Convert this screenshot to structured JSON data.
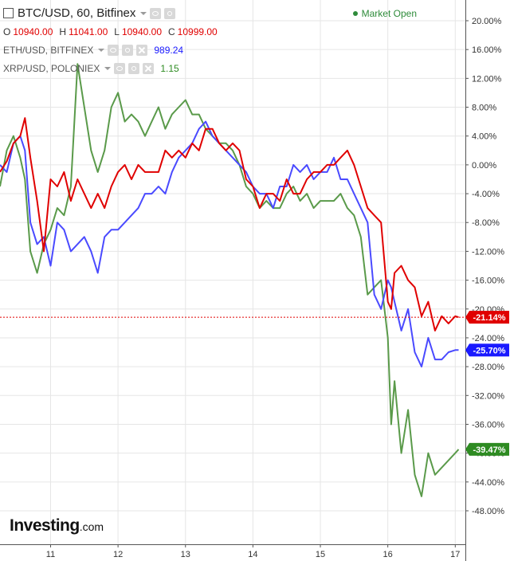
{
  "header": {
    "symbol_title": "BTC/USD, 60, Bitfinex",
    "ohlc": [
      {
        "k": "O",
        "v": "10940.00"
      },
      {
        "k": "H",
        "v": "11041.00"
      },
      {
        "k": "L",
        "v": "10940.00"
      },
      {
        "k": "C",
        "v": "10999.00"
      }
    ],
    "status": "Market Open",
    "overlays": [
      {
        "name": "ETH/USD, BITFINEX",
        "value": "989.24",
        "color": "#1a1aff"
      },
      {
        "name": "XRP/USD, POLONIEX",
        "value": "1.15",
        "color": "#2e8b22"
      }
    ]
  },
  "logo": {
    "main": "Investing",
    "sub": ".com"
  },
  "colors": {
    "btc": "#e00000",
    "eth": "#4a4aff",
    "xrp": "#5a9a4a",
    "grid": "#e6e6e6",
    "baseline": "#e00000"
  },
  "chart_data": {
    "type": "line",
    "ylim": [
      -48,
      22
    ],
    "y_ticks": [
      "20.00%",
      "16.00%",
      "12.00%",
      "8.00%",
      "4.00%",
      "0.00%",
      "-4.00%",
      "-8.00%",
      "-12.00%",
      "-16.00%",
      "-20.00%",
      "-24.00%",
      "-28.00%",
      "-32.00%",
      "-36.00%",
      "-40.00%",
      "-44.00%",
      "-48.00%"
    ],
    "y_tick_values": [
      20,
      16,
      12,
      8,
      4,
      0,
      -4,
      -8,
      -12,
      -16,
      -20,
      -24,
      -28,
      -32,
      -36,
      -40,
      -44,
      -48
    ],
    "x_ticks": [
      "11",
      "12",
      "13",
      "14",
      "15",
      "16",
      "17"
    ],
    "x_tick_values": [
      11,
      12,
      13,
      14,
      15,
      16,
      17
    ],
    "xlim": [
      10.25,
      17.15
    ],
    "end_labels": [
      {
        "series": "BTC/USD",
        "text": "-21.14%",
        "value": -21.14,
        "color": "#e00000"
      },
      {
        "series": "ETH/USD",
        "text": "-25.70%",
        "value": -25.7,
        "color": "#1a1aff"
      },
      {
        "series": "XRP/USD",
        "text": "-39.47%",
        "value": -39.47,
        "color": "#2e8b22"
      }
    ],
    "series": [
      {
        "name": "BTC/USD",
        "color": "#e00000",
        "x": [
          10.25,
          10.35,
          10.45,
          10.55,
          10.62,
          10.7,
          10.8,
          10.9,
          11.0,
          11.1,
          11.2,
          11.3,
          11.4,
          11.5,
          11.6,
          11.7,
          11.8,
          11.9,
          12.0,
          12.1,
          12.2,
          12.3,
          12.4,
          12.5,
          12.6,
          12.7,
          12.8,
          12.9,
          13.0,
          13.1,
          13.2,
          13.3,
          13.4,
          13.5,
          13.6,
          13.7,
          13.8,
          13.9,
          14.0,
          14.1,
          14.2,
          14.3,
          14.4,
          14.5,
          14.6,
          14.7,
          14.8,
          14.9,
          15.0,
          15.1,
          15.2,
          15.3,
          15.4,
          15.5,
          15.6,
          15.7,
          15.8,
          15.9,
          16.0,
          16.05,
          16.1,
          16.2,
          16.3,
          16.4,
          16.5,
          16.6,
          16.7,
          16.8,
          16.9,
          17.0,
          17.05
        ],
        "y": [
          -1,
          0.5,
          3,
          4,
          6.5,
          1,
          -5,
          -12,
          -2,
          -3,
          -1,
          -5,
          -2,
          -4,
          -6,
          -4,
          -6,
          -3,
          -1,
          0,
          -2,
          0,
          -1,
          -1,
          -1,
          2,
          1,
          2,
          1,
          3,
          2,
          5,
          5,
          3,
          2,
          3,
          2,
          -2,
          -3,
          -6,
          -4,
          -4,
          -5,
          -2,
          -4,
          -4,
          -2,
          -1,
          -1,
          0,
          0,
          1,
          2,
          0,
          -3,
          -6,
          -7,
          -8,
          -19,
          -20,
          -15,
          -14,
          -16,
          -17,
          -21,
          -19,
          -23,
          -21,
          -22,
          -21,
          -21.14
        ]
      },
      {
        "name": "ETH/USD",
        "color": "#4a4aff",
        "x": [
          10.25,
          10.35,
          10.45,
          10.55,
          10.62,
          10.7,
          10.8,
          10.9,
          11.0,
          11.1,
          11.2,
          11.3,
          11.4,
          11.5,
          11.6,
          11.7,
          11.8,
          11.9,
          12.0,
          12.1,
          12.2,
          12.3,
          12.4,
          12.5,
          12.6,
          12.7,
          12.8,
          12.9,
          13.0,
          13.1,
          13.2,
          13.3,
          13.4,
          13.5,
          13.6,
          13.7,
          13.8,
          13.9,
          14.0,
          14.1,
          14.2,
          14.3,
          14.4,
          14.5,
          14.6,
          14.7,
          14.8,
          14.9,
          15.0,
          15.1,
          15.2,
          15.3,
          15.4,
          15.5,
          15.6,
          15.7,
          15.8,
          15.9,
          16.0,
          16.05,
          16.1,
          16.2,
          16.3,
          16.4,
          16.5,
          16.6,
          16.7,
          16.8,
          16.9,
          17.0,
          17.05
        ],
        "y": [
          0,
          -1,
          3,
          4,
          2,
          -8,
          -11,
          -10,
          -14,
          -8,
          -9,
          -12,
          -11,
          -10,
          -12,
          -15,
          -10,
          -9,
          -9,
          -8,
          -7,
          -6,
          -4,
          -4,
          -3,
          -4,
          -1,
          1,
          2,
          3,
          5,
          6,
          4,
          3,
          2,
          1,
          0,
          -1,
          -3,
          -4,
          -4,
          -6,
          -3,
          -3,
          0,
          -1,
          0,
          -2,
          -1,
          -1,
          1,
          -2,
          -2,
          -4,
          -6,
          -8,
          -18,
          -20,
          -16,
          -17,
          -19,
          -23,
          -20,
          -26,
          -28,
          -24,
          -27,
          -27,
          -26,
          -25.7,
          -25.7
        ]
      },
      {
        "name": "XRP/USD",
        "color": "#5a9a4a",
        "x": [
          10.25,
          10.35,
          10.45,
          10.55,
          10.62,
          10.7,
          10.8,
          10.9,
          11.0,
          11.1,
          11.2,
          11.3,
          11.4,
          11.5,
          11.6,
          11.7,
          11.8,
          11.9,
          12.0,
          12.1,
          12.2,
          12.3,
          12.4,
          12.5,
          12.6,
          12.7,
          12.8,
          12.9,
          13.0,
          13.1,
          13.2,
          13.3,
          13.4,
          13.5,
          13.6,
          13.7,
          13.8,
          13.9,
          14.0,
          14.1,
          14.2,
          14.3,
          14.4,
          14.5,
          14.6,
          14.7,
          14.8,
          14.9,
          15.0,
          15.1,
          15.2,
          15.3,
          15.4,
          15.5,
          15.6,
          15.7,
          15.8,
          15.9,
          16.0,
          16.05,
          16.1,
          16.2,
          16.3,
          16.4,
          16.5,
          16.6,
          16.7,
          16.8,
          16.9,
          17.0,
          17.05
        ],
        "y": [
          -3,
          2,
          4,
          1,
          -2,
          -12,
          -15,
          -11,
          -9,
          -6,
          -7,
          -3,
          14,
          8,
          2,
          -1,
          2,
          8,
          10,
          6,
          7,
          6,
          4,
          6,
          8,
          5,
          7,
          8,
          9,
          7,
          7,
          5,
          4,
          3,
          3,
          2,
          0,
          -3,
          -4,
          -6,
          -5,
          -6,
          -6,
          -4,
          -3,
          -5,
          -4,
          -6,
          -5,
          -5,
          -5,
          -4,
          -6,
          -7,
          -10,
          -18,
          -17,
          -16,
          -24,
          -36,
          -30,
          -40,
          -34,
          -43,
          -46,
          -40,
          -43,
          -42,
          -41,
          -40,
          -39.47
        ]
      }
    ]
  }
}
